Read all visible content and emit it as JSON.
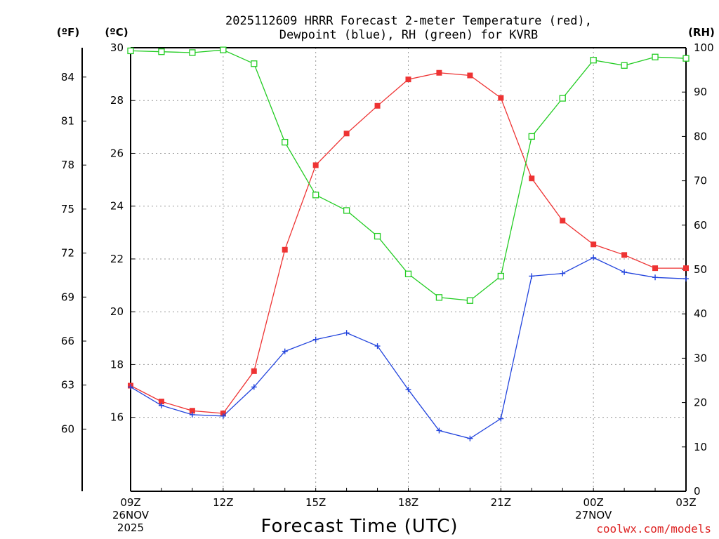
{
  "title_line1": "2025112609 HRRR Forecast 2-meter Temperature (red),",
  "title_line2": "Dewpoint (blue), RH (green) for KVRB",
  "unit_f": "(ºF)",
  "unit_c": "(ºC)",
  "unit_rh": "(RH)",
  "xlabel": "Forecast Time (UTC)",
  "credit": "coolwx.com/models",
  "colors": {
    "temperature": "#ee3333",
    "dewpoint": "#2244dd",
    "rh": "#22cc22",
    "credit": "#dd2222"
  },
  "chart_data": {
    "type": "line",
    "title": "2025112609 HRRR Forecast 2-meter Temperature (red), Dewpoint (blue), RH (green) for KVRB",
    "xlabel": "Forecast Time (UTC)",
    "x": [
      "09Z",
      "10Z",
      "11Z",
      "12Z",
      "13Z",
      "14Z",
      "15Z",
      "16Z",
      "17Z",
      "18Z",
      "19Z",
      "20Z",
      "21Z",
      "22Z",
      "23Z",
      "00Z",
      "01Z",
      "02Z",
      "03Z"
    ],
    "x_tick_labels": [
      {
        "index": 0,
        "lines": [
          "09Z",
          "26NOV",
          "2025"
        ]
      },
      {
        "index": 3,
        "lines": [
          "12Z"
        ]
      },
      {
        "index": 6,
        "lines": [
          "15Z"
        ]
      },
      {
        "index": 9,
        "lines": [
          "18Z"
        ]
      },
      {
        "index": 12,
        "lines": [
          "21Z"
        ]
      },
      {
        "index": 15,
        "lines": [
          "00Z",
          "27NOV"
        ]
      },
      {
        "index": 18,
        "lines": [
          "03Z"
        ]
      }
    ],
    "axes": {
      "celsius": {
        "label": "(ºC)",
        "range": [
          13.2,
          30
        ],
        "ticks": [
          "16",
          "18",
          "20",
          "22",
          "24",
          "26",
          "28",
          "30"
        ]
      },
      "fahrenheit": {
        "label": "(ºF)",
        "ticks": [
          "60",
          "63",
          "66",
          "69",
          "72",
          "75",
          "78",
          "81",
          "84"
        ]
      },
      "rh": {
        "label": "(RH)",
        "range": [
          0,
          100
        ],
        "ticks": [
          "0",
          "10",
          "20",
          "30",
          "40",
          "50",
          "60",
          "70",
          "80",
          "90",
          "100"
        ]
      }
    },
    "grid": true,
    "series": [
      {
        "name": "Temperature",
        "color": "#ee3333",
        "marker": "filled-square",
        "axis": "celsius",
        "values": [
          17.2,
          16.6,
          16.25,
          16.15,
          17.75,
          22.35,
          25.55,
          26.75,
          27.8,
          28.8,
          29.05,
          28.95,
          28.1,
          25.05,
          23.45,
          22.55,
          22.15,
          21.65,
          21.65
        ]
      },
      {
        "name": "Dewpoint",
        "color": "#2244dd",
        "marker": "plus",
        "axis": "celsius",
        "values": [
          17.15,
          16.45,
          16.1,
          16.05,
          17.15,
          18.5,
          18.95,
          19.2,
          18.7,
          17.05,
          15.5,
          15.2,
          15.95,
          21.35,
          21.45,
          22.05,
          21.5,
          21.3,
          21.25
        ]
      },
      {
        "name": "RH",
        "color": "#22cc22",
        "marker": "open-square",
        "axis": "rh",
        "values": [
          99.3,
          99.1,
          98.9,
          99.5,
          96.4,
          78.7,
          66.8,
          63.3,
          57.5,
          49.0,
          43.7,
          43.0,
          48.5,
          80.0,
          88.6,
          97.2,
          96.0,
          97.9,
          97.6
        ]
      }
    ]
  }
}
